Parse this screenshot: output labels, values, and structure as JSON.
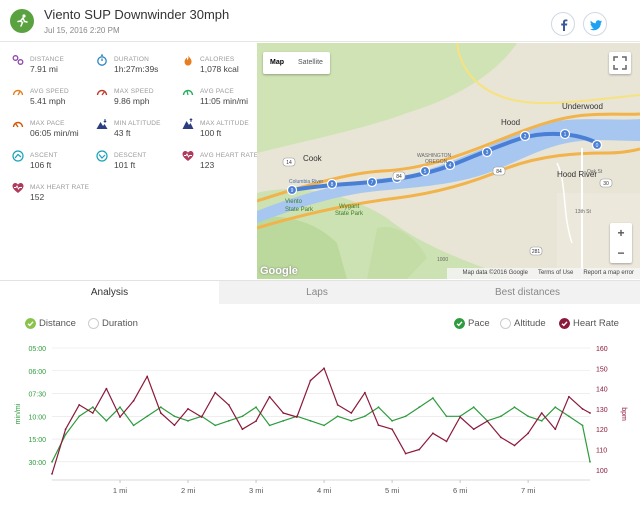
{
  "header": {
    "title": "Viento SUP Downwinder 30mph",
    "date": "Jul 15, 2016 2:20 PM",
    "sport_icon": "runner-icon",
    "share": [
      "facebook-icon",
      "twitter-icon"
    ]
  },
  "stats": [
    {
      "label": "DISTANCE",
      "value": "7.91 mi",
      "icon": "distance-icon",
      "color": "#8e44ad"
    },
    {
      "label": "DURATION",
      "value": "1h:27m:39s",
      "icon": "stopwatch-icon",
      "color": "#2e86c1"
    },
    {
      "label": "CALORIES",
      "value": "1,078 kcal",
      "icon": "flame-icon",
      "color": "#e67e22"
    },
    {
      "label": "AVG SPEED",
      "value": "5.41 mph",
      "icon": "speed-icon",
      "color": "#e67e22"
    },
    {
      "label": "MAX SPEED",
      "value": "9.86 mph",
      "icon": "max-speed-icon",
      "color": "#c0392b"
    },
    {
      "label": "AVG PACE",
      "value": "11:05 min/mi",
      "icon": "pace-icon",
      "color": "#27ae60"
    },
    {
      "label": "MAX PACE",
      "value": "06:05 min/mi",
      "icon": "max-pace-icon",
      "color": "#d35400"
    },
    {
      "label": "MIN ALTITUDE",
      "value": "43 ft",
      "icon": "min-altitude-icon",
      "color": "#2c3e80"
    },
    {
      "label": "MAX ALTITUDE",
      "value": "100 ft",
      "icon": "max-altitude-icon",
      "color": "#2c3e80"
    },
    {
      "label": "ASCENT",
      "value": "106 ft",
      "icon": "ascent-icon",
      "color": "#17a2b8"
    },
    {
      "label": "DESCENT",
      "value": "101 ft",
      "icon": "descent-icon",
      "color": "#17a2b8"
    },
    {
      "label": "AVG HEART RATE",
      "value": "123",
      "icon": "heart-icon",
      "color": "#b03a5b"
    },
    {
      "label": "MAX HEART RATE",
      "value": "152",
      "icon": "heart-icon",
      "color": "#b03a5b"
    }
  ],
  "map": {
    "map_type": [
      "Map",
      "Satellite"
    ],
    "active_map_type": "Map",
    "zoom_in": "+",
    "zoom_out": "−",
    "logo": "Google",
    "attribution": "Map data ©2016 Google",
    "terms": "Terms of Use",
    "report": "Report a map error",
    "labels": [
      "Underwood",
      "Hood",
      "Cook",
      "Hood River",
      "WASHINGTON",
      "OREGON",
      "Viento",
      "State Park",
      "Wygant",
      "State Park",
      "Columbia River",
      "Oak St",
      "13th St",
      "1000"
    ],
    "shields": [
      "14",
      "84",
      "84",
      "281",
      "30"
    ],
    "markers": [
      "9",
      "8",
      "7",
      "6",
      "5",
      "4",
      "3",
      "2",
      "1",
      "0"
    ]
  },
  "tabs": [
    "Analysis",
    "Laps",
    "Best distances"
  ],
  "active_tab": "Analysis",
  "x_toggles": [
    {
      "label": "Distance",
      "checked": true
    },
    {
      "label": "Duration",
      "checked": false
    }
  ],
  "y_toggles": [
    {
      "label": "Pace",
      "checked": true,
      "color": "#2e9b3e"
    },
    {
      "label": "Altitude",
      "checked": false,
      "color": "#cccccc"
    },
    {
      "label": "Heart Rate",
      "checked": true,
      "color": "#8b1a3a"
    }
  ],
  "chart_data": {
    "type": "line",
    "xlabel": "",
    "x_ticks": [
      "1 mi",
      "2 mi",
      "3 mi",
      "4 mi",
      "5 mi",
      "6 mi",
      "7 mi"
    ],
    "xlim": [
      0,
      7.91
    ],
    "y_left": {
      "label": "min/mi",
      "ticks": [
        "05:00",
        "06:00",
        "07:30",
        "10:00",
        "15:00",
        "30:00"
      ],
      "color": "#2e9b3e"
    },
    "y_right": {
      "label": "bpm",
      "ticks": [
        "160",
        "150",
        "140",
        "130",
        "120",
        "110",
        "100"
      ],
      "ylim": [
        95,
        160
      ],
      "color": "#8b1a3a"
    },
    "grid": true,
    "series": [
      {
        "name": "Pace",
        "color": "#2e9b3e",
        "x": [
          0,
          0.2,
          0.4,
          0.6,
          0.8,
          1.0,
          1.2,
          1.4,
          1.6,
          1.8,
          2.0,
          2.2,
          2.4,
          2.6,
          2.8,
          3.0,
          3.2,
          3.4,
          3.6,
          3.8,
          4.0,
          4.2,
          4.4,
          4.6,
          4.8,
          5.0,
          5.2,
          5.4,
          5.6,
          5.8,
          6.0,
          6.2,
          6.4,
          6.6,
          6.8,
          7.0,
          7.2,
          7.4,
          7.6,
          7.8,
          7.91
        ],
        "values": [
          30,
          14,
          10,
          9,
          11,
          9,
          12,
          10,
          9,
          10,
          11,
          10,
          12,
          11,
          10,
          9,
          12,
          11,
          10,
          11,
          12,
          10,
          11,
          10,
          9,
          11,
          10,
          9,
          8,
          10,
          10,
          9,
          11,
          10,
          9,
          10,
          11,
          9,
          10,
          12,
          30
        ]
      },
      {
        "name": "Heart Rate",
        "color": "#8b1a3a",
        "x": [
          0,
          0.2,
          0.4,
          0.6,
          0.8,
          1.0,
          1.2,
          1.4,
          1.6,
          1.8,
          2.0,
          2.2,
          2.4,
          2.6,
          2.8,
          3.0,
          3.2,
          3.4,
          3.6,
          3.8,
          4.0,
          4.2,
          4.4,
          4.6,
          4.8,
          5.0,
          5.2,
          5.4,
          5.6,
          5.8,
          6.0,
          6.2,
          6.4,
          6.6,
          6.8,
          7.0,
          7.2,
          7.4,
          7.6,
          7.8,
          7.91
        ],
        "values": [
          98,
          120,
          132,
          128,
          140,
          126,
          134,
          146,
          128,
          122,
          130,
          126,
          138,
          132,
          120,
          124,
          136,
          128,
          126,
          144,
          150,
          132,
          128,
          138,
          122,
          120,
          108,
          110,
          118,
          114,
          126,
          120,
          124,
          116,
          112,
          118,
          128,
          120,
          136,
          130,
          128
        ]
      }
    ]
  }
}
